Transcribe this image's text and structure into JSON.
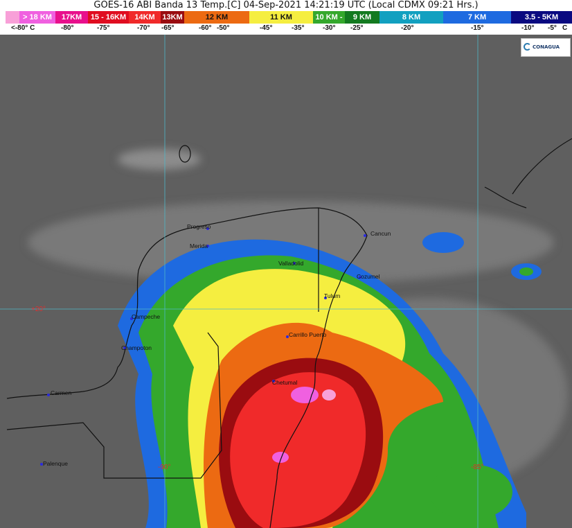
{
  "title": "GOES-16 ABI Banda 13 Temp.[C] 04-Sep-2021 14:21:19 UTC (Local CDMX  09:21 Hrs.)",
  "legend": [
    {
      "label": "> 18 KM",
      "color": "#f060e0"
    },
    {
      "label": "17KM",
      "color": "#e8108c"
    },
    {
      "label": "15 - 16KM",
      "color": "#e00d20"
    },
    {
      "label": "14KM",
      "color": "#f02a2a"
    },
    {
      "label": "13KM",
      "color": "#9a0c10"
    },
    {
      "label": "12 KM",
      "color": "#ec6a12"
    },
    {
      "label": "11 KM",
      "color": "#f5ee40"
    },
    {
      "label": "10 KM -",
      "color": "#34a82c"
    },
    {
      "label": "9 KM",
      "color": "#137a20"
    },
    {
      "label": "8 KM",
      "color": "#12a0c0"
    },
    {
      "label": "7 KM",
      "color": "#1e6ae0"
    },
    {
      "label": "3.5 - 5KM",
      "color": "#0a0a80"
    }
  ],
  "temperatures": [
    "<-80° C",
    "-80°",
    "-75°",
    "-70°",
    "-65°",
    "-60°",
    "-50°",
    "-45°",
    "-35°",
    "-30°",
    "-25°",
    "-20°",
    "-15°",
    "-10°",
    "-5°",
    "C"
  ],
  "logo": "CONAGUA",
  "cities": [
    "Progreso",
    "Merida",
    "Valladolid",
    "Cancun",
    "Cozumel",
    "Tulum",
    "Campeche",
    "Champoton",
    "Carrillo Puerto",
    "Carmen",
    "Chetumal",
    "Palenque"
  ],
  "grid_labels": [
    "+20°",
    "-90°",
    "-85°"
  ]
}
